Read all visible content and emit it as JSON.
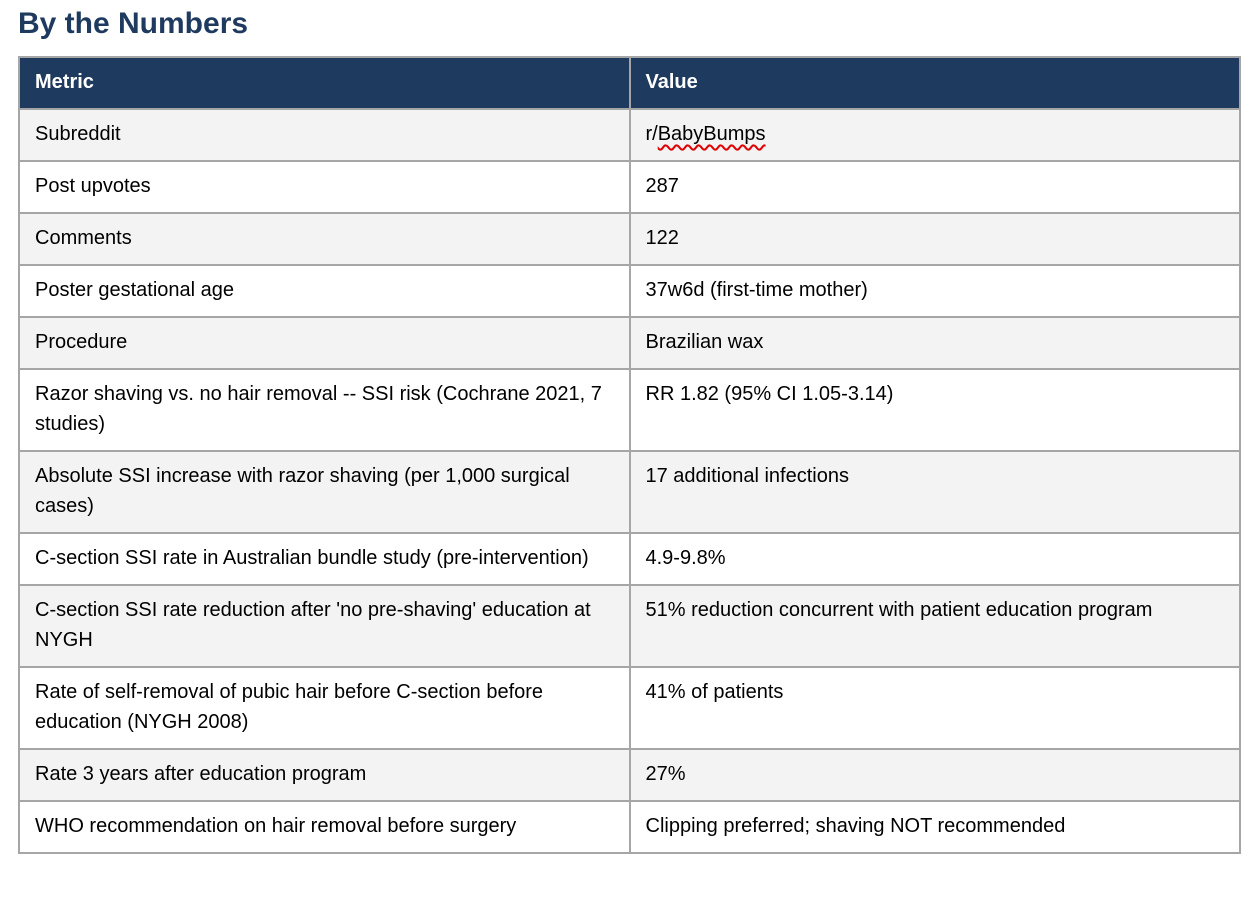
{
  "page_title": "By the Numbers",
  "table": {
    "columns": [
      "Metric",
      "Value"
    ],
    "rows": [
      {
        "metric": "Subreddit",
        "value": "r/BabyBumps",
        "misspelled": "BabyBumps"
      },
      {
        "metric": "Post upvotes",
        "value": "287"
      },
      {
        "metric": "Comments",
        "value": "122"
      },
      {
        "metric": "Poster gestational age",
        "value": "37w6d (first-time mother)"
      },
      {
        "metric": "Procedure",
        "value": "Brazilian wax"
      },
      {
        "metric": "Razor shaving vs. no hair removal -- SSI risk (Cochrane 2021, 7 studies)",
        "value": "RR 1.82 (95% CI 1.05-3.14)"
      },
      {
        "metric": "Absolute SSI increase with razor shaving (per 1,000 surgical cases)",
        "value": "17 additional infections"
      },
      {
        "metric": "C-section SSI rate in Australian bundle study (pre-intervention)",
        "value": "4.9-9.8%"
      },
      {
        "metric": "C-section SSI rate reduction after 'no pre-shaving' education at NYGH",
        "value": "51% reduction concurrent with patient education program"
      },
      {
        "metric": "Rate of self-removal of pubic hair before C-section before education (NYGH 2008)",
        "value": "41% of patients"
      },
      {
        "metric": "Rate 3 years after education program",
        "value": "27%"
      },
      {
        "metric": "WHO recommendation on hair removal before surgery",
        "value": "Clipping preferred; shaving NOT recommended"
      }
    ]
  },
  "colors": {
    "header_background": "#1f3a5f",
    "header_text": "#ffffff",
    "title_text": "#1f3a5f",
    "row_alt_background": "#f3f3f3",
    "row_background": "#ffffff",
    "border": "#a6a6a6",
    "spellcheck_underline": "#e00000"
  }
}
